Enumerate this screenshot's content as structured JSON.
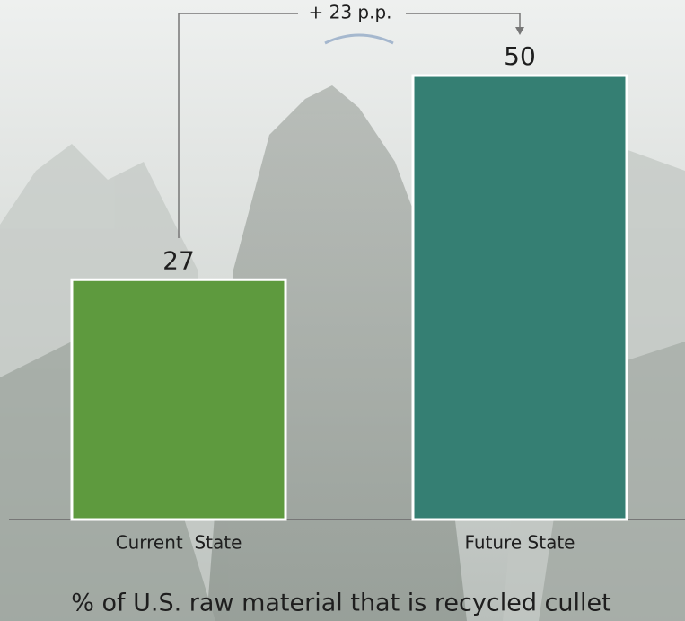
{
  "chart_data": {
    "type": "bar",
    "categories": [
      "Current  State",
      "Future State"
    ],
    "values": [
      27,
      50
    ],
    "colors": [
      "#5e9a3e",
      "#357f73"
    ],
    "ylim": [
      0,
      58
    ],
    "annotation": "+ 23 p.p.",
    "x_label": "% of U.S. raw material that is recycled cullet"
  }
}
